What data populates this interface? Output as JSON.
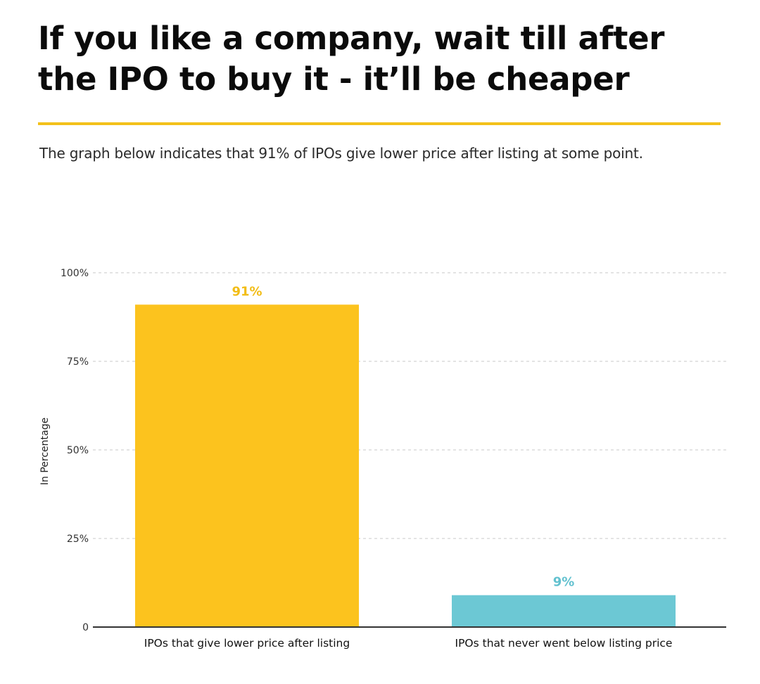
{
  "header": {
    "title": "If you like a company, wait till after the IPO to buy it - it’ll be cheaper",
    "subtitle": "The graph below indicates that 91% of IPOs give lower price after listing at some point."
  },
  "colors": {
    "accent_rule": "#f3c11b",
    "gridline": "#c8c8c8",
    "axis": "#333333"
  },
  "chart_data": {
    "type": "bar",
    "ylabel": "In Percentage",
    "ylim": [
      0,
      100
    ],
    "yticks": [
      {
        "value": 0,
        "label": "0"
      },
      {
        "value": 25,
        "label": "25%"
      },
      {
        "value": 50,
        "label": "50%"
      },
      {
        "value": 75,
        "label": "75%"
      },
      {
        "value": 100,
        "label": "100%"
      }
    ],
    "grid": true,
    "categories": [
      "IPOs that give lower price after listing",
      "IPOs that never went below listing price"
    ],
    "values": [
      91,
      9
    ],
    "data_labels": [
      "91%",
      "9%"
    ],
    "bar_colors": [
      "#fcc31e",
      "#6cc8d4"
    ],
    "label_colors": [
      "#f2bd17",
      "#62c1cf"
    ]
  }
}
